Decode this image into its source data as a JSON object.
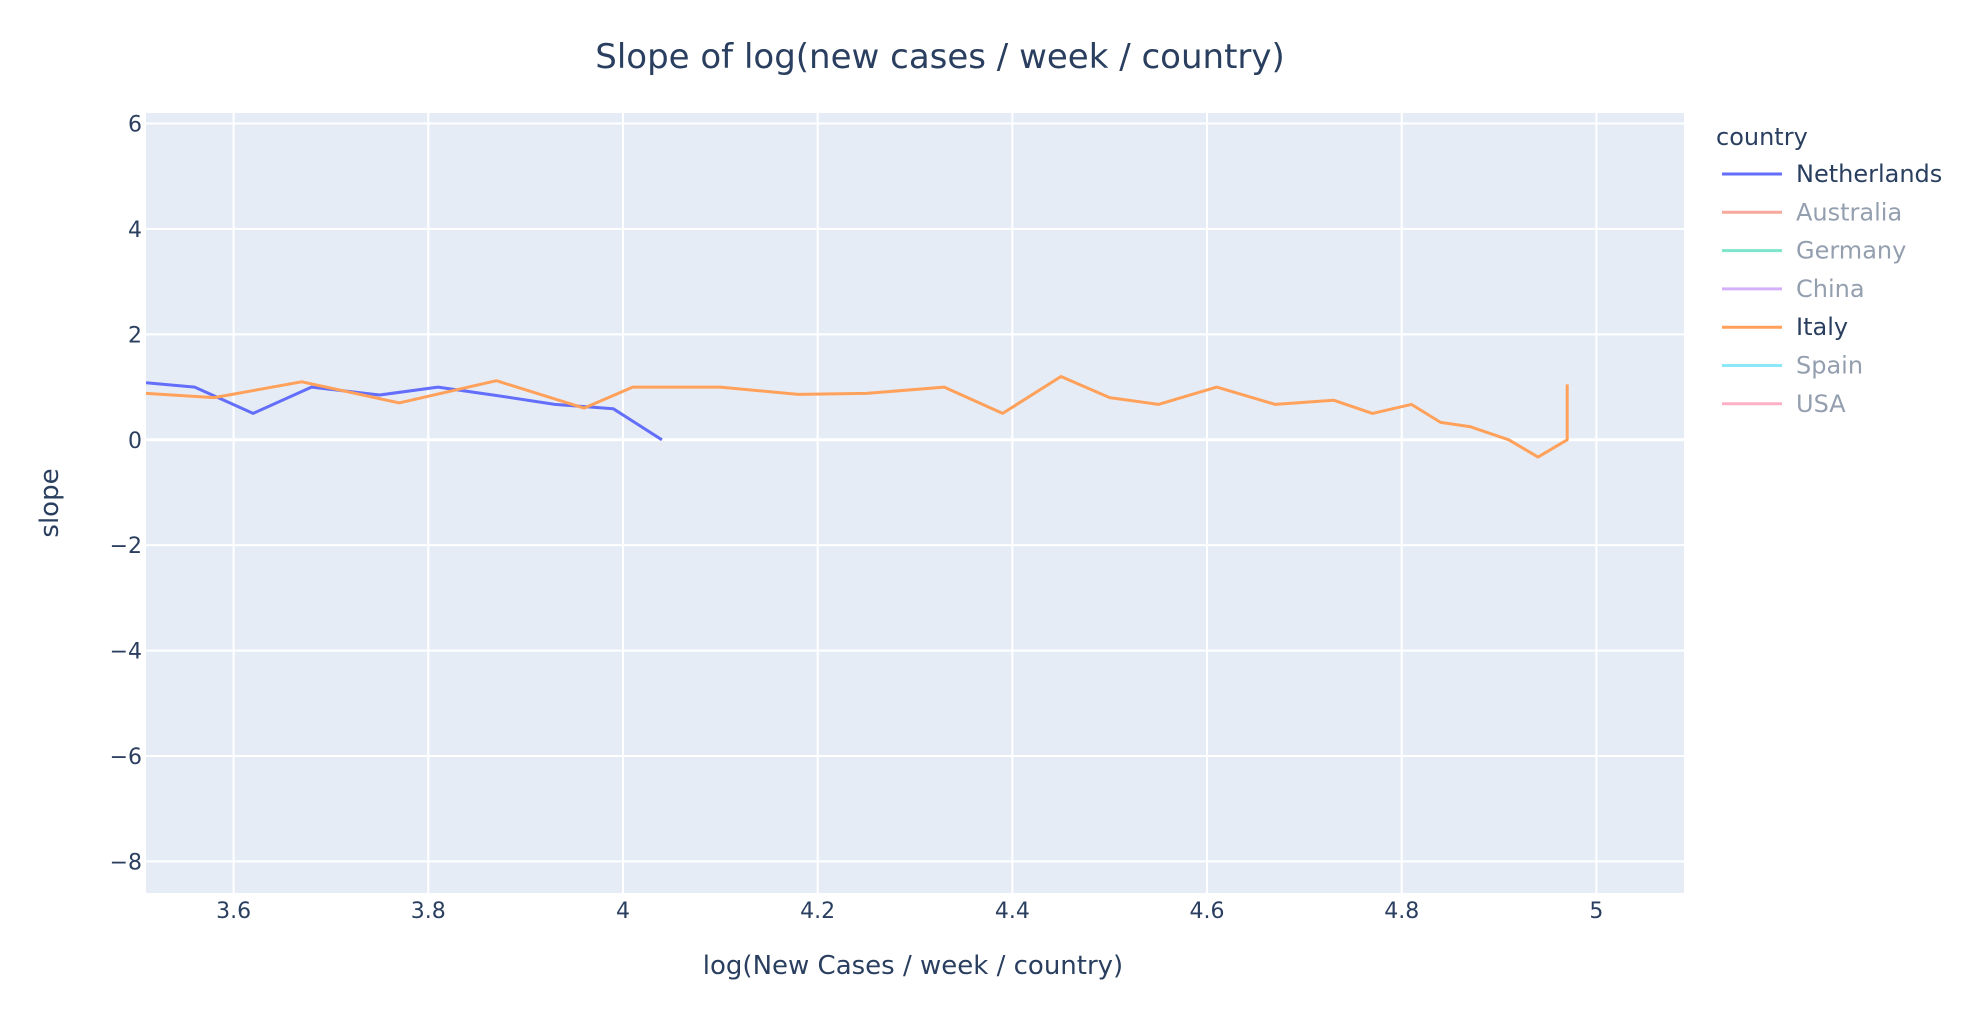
{
  "chart_data": {
    "type": "line",
    "title": "Slope of log(new cases / week / country)",
    "xlabel": "log(New Cases / week / country)",
    "ylabel": "slope",
    "xlim": [
      3.51,
      5.09
    ],
    "ylim": [
      -8.6,
      6.2
    ],
    "x_ticks": [
      3.6,
      3.8,
      4,
      4.2,
      4.4,
      4.6,
      4.8,
      5
    ],
    "y_ticks": [
      6,
      4,
      2,
      0,
      -2,
      -4,
      -6,
      -8
    ],
    "x_tick_labels": [
      "3.6",
      "3.8",
      "4",
      "4.2",
      "4.4",
      "4.6",
      "4.8",
      "5"
    ],
    "y_tick_labels": [
      "6",
      "4",
      "2",
      "0",
      "−2",
      "−4",
      "−6",
      "−8"
    ],
    "grid": true,
    "legend_title": "country",
    "legend_position": "right",
    "series": [
      {
        "name": "Netherlands",
        "color": "#636efa",
        "visible": true,
        "x": [
          3.51,
          3.56,
          3.62,
          3.68,
          3.75,
          3.81,
          3.87,
          3.93,
          3.99,
          4.04
        ],
        "y": [
          1.08,
          1.0,
          0.5,
          1.0,
          0.85,
          1.0,
          0.84,
          0.67,
          0.59,
          0.0
        ]
      },
      {
        "name": "Australia",
        "color": "#EF553B",
        "visible": false,
        "x": [],
        "y": []
      },
      {
        "name": "Germany",
        "color": "#00cc96",
        "visible": false,
        "x": [],
        "y": []
      },
      {
        "name": "China",
        "color": "#ab63fa",
        "visible": false,
        "x": [],
        "y": []
      },
      {
        "name": "Italy",
        "color": "#FFA15A",
        "visible": true,
        "x": [
          3.51,
          3.58,
          3.67,
          3.77,
          3.87,
          3.96,
          4.01,
          4.1,
          4.18,
          4.25,
          4.33,
          4.39,
          4.45,
          4.5,
          4.55,
          4.61,
          4.67,
          4.73,
          4.77,
          4.81,
          4.84,
          4.87,
          4.91,
          4.94,
          4.97,
          4.97
        ],
        "y": [
          0.88,
          0.8,
          1.1,
          0.7,
          1.12,
          0.6,
          1.0,
          1.0,
          0.86,
          0.88,
          1.0,
          0.5,
          1.2,
          0.8,
          0.67,
          1.0,
          0.67,
          0.75,
          0.5,
          0.67,
          0.33,
          0.25,
          0.0,
          -0.33,
          0.0,
          1.05
        ]
      },
      {
        "name": "Spain",
        "color": "#19d3f3",
        "visible": false,
        "x": [],
        "y": []
      },
      {
        "name": "USA",
        "color": "#FF6692",
        "visible": false,
        "x": [],
        "y": []
      }
    ]
  }
}
